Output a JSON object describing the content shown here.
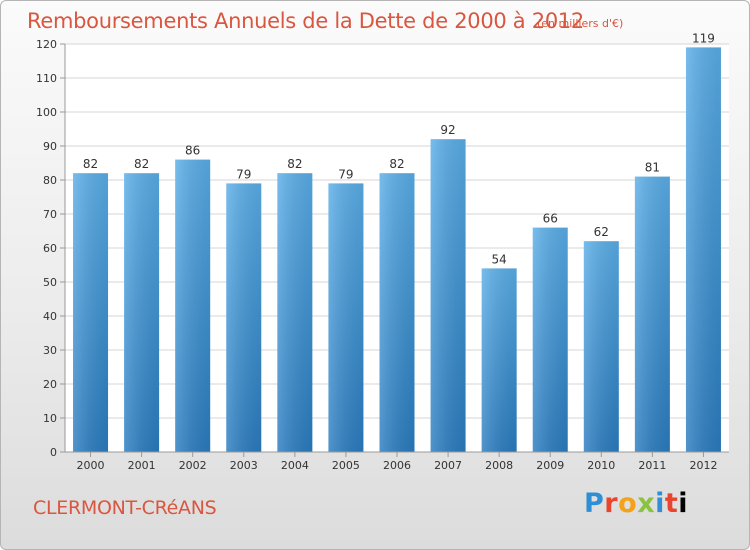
{
  "chart_data": {
    "type": "bar",
    "title": "Remboursements Annuels de la Dette de 2000 à 2012",
    "subtitle": "(en milliers d'€)",
    "categories": [
      "2000",
      "2001",
      "2002",
      "2003",
      "2004",
      "2005",
      "2006",
      "2007",
      "2008",
      "2009",
      "2010",
      "2011",
      "2012"
    ],
    "values": [
      82,
      82,
      86,
      79,
      82,
      79,
      82,
      92,
      54,
      66,
      62,
      81,
      119
    ],
    "ylim": [
      0,
      120
    ],
    "yticks": [
      0,
      10,
      20,
      30,
      40,
      50,
      60,
      70,
      80,
      90,
      100,
      110,
      120
    ],
    "grid": true,
    "bar_color": "#3d95db"
  },
  "footer": {
    "place": "CLERMONT-CRéANS",
    "logo": [
      "P",
      "r",
      "o",
      "x",
      "i",
      "t",
      "i"
    ]
  }
}
